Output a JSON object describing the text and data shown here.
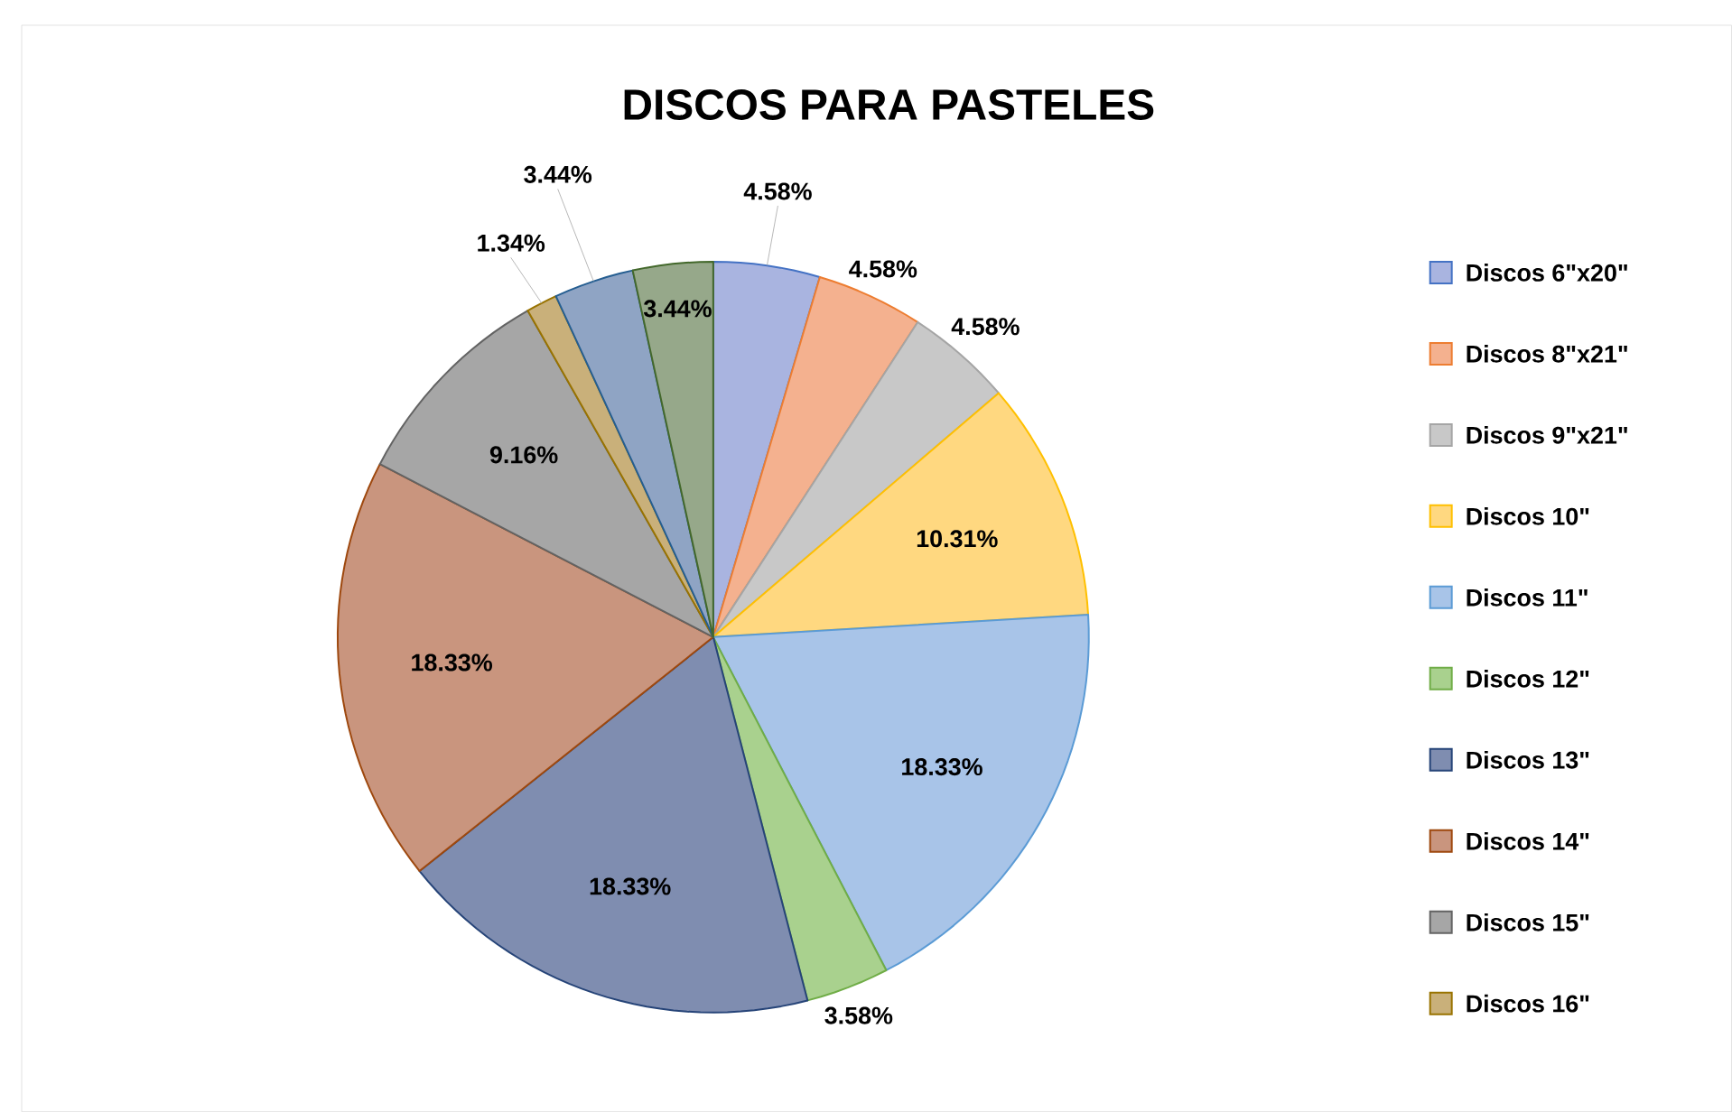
{
  "chart_data": {
    "type": "pie",
    "title": "DISCOS PARA PASTELES",
    "categories": [
      "Discos 6\"x20\"",
      "Discos 8\"x21\"",
      "Discos 9\"x21\"",
      "Discos 10\"",
      "Discos 11\"",
      "Discos 12\"",
      "Discos 13\"",
      "Discos 14\"",
      "Discos 15\"",
      "Discos 16\"",
      null,
      null
    ],
    "values": [
      4.58,
      4.58,
      4.58,
      10.31,
      18.33,
      3.58,
      18.33,
      18.33,
      9.16,
      1.34,
      3.44,
      3.44
    ],
    "value_labels": [
      "4.58%",
      "4.58%",
      "4.58%",
      "10.31%",
      "18.33%",
      "3.58%",
      "18.33%",
      "18.33%",
      "9.16%",
      "1.34%",
      "3.44%",
      "3.44%"
    ],
    "colors": [
      "#a9b4e0",
      "#f4b18f",
      "#c8c8c8",
      "#ffd880",
      "#a8c4e8",
      "#a9d18e",
      "#7f8db0",
      "#c9957e",
      "#a6a6a6",
      "#c9b07a",
      "#8fa4c4",
      "#96a88a"
    ],
    "legend": "right"
  }
}
